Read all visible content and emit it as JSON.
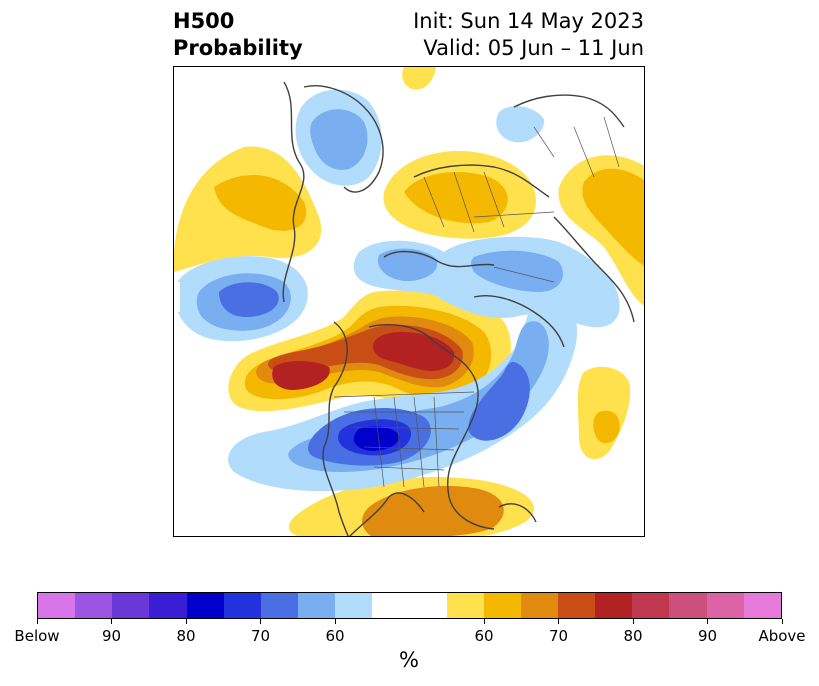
{
  "title": {
    "left_line1": "H500",
    "left_line2": "Probability",
    "right_line1": "Init: Sun 14 May 2023",
    "right_line2": "Valid: 05 Jun – 11 Jun"
  },
  "colorbar": {
    "colors": [
      "#d774e8",
      "#9c55e2",
      "#6a37d8",
      "#3a1ed6",
      "#0000cc",
      "#2233dd",
      "#4a6fe3",
      "#79aff0",
      "#b2dcfc",
      "#ffffff",
      "#ffffff",
      "#ffe14d",
      "#f5b800",
      "#e08a10",
      "#c84e15",
      "#b22222",
      "#c03850",
      "#cc4f7c",
      "#dc64a6",
      "#e679d9"
    ],
    "tick_labels": [
      "Below",
      "90",
      "80",
      "70",
      "60",
      "60",
      "70",
      "80",
      "90",
      "Above"
    ],
    "unit": "%"
  },
  "palette": {
    "above": [
      "#ffe14d",
      "#f5b800",
      "#e08a10",
      "#c84e15",
      "#b22222"
    ],
    "below": [
      "#b2dcfc",
      "#79aff0",
      "#4a6fe3",
      "#2233dd",
      "#0000cc"
    ],
    "coast": "#404040"
  }
}
